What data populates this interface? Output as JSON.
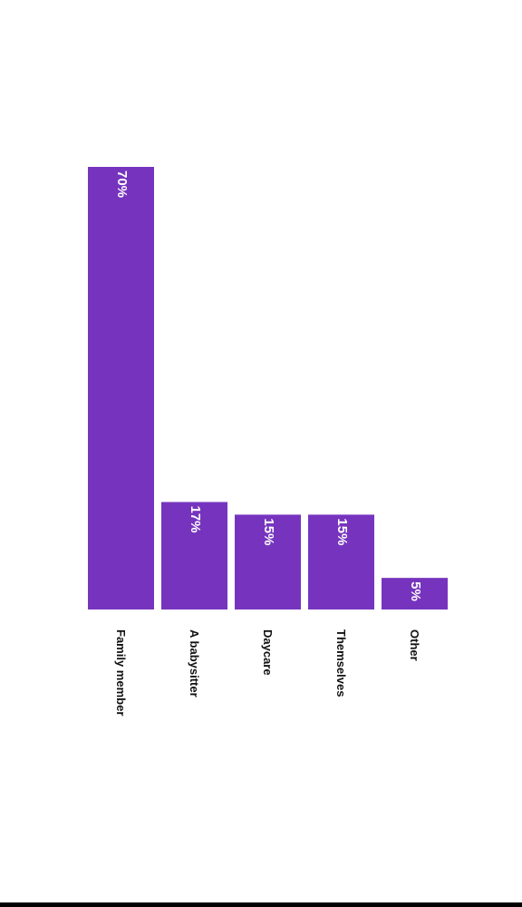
{
  "chart_data": {
    "type": "bar",
    "orientation": "vertical",
    "categories": [
      "Family member",
      "A babysitter",
      "Daycare",
      "Themselves",
      "Other"
    ],
    "values": [
      70,
      17,
      15,
      15,
      5
    ],
    "value_labels": [
      "70%",
      "17%",
      "15%",
      "15%",
      "5%"
    ],
    "ylim": [
      0,
      70
    ],
    "grid": false,
    "legend": "none",
    "bar_color": "#7634BE",
    "label_orientation": "rotated-90-clockwise"
  }
}
